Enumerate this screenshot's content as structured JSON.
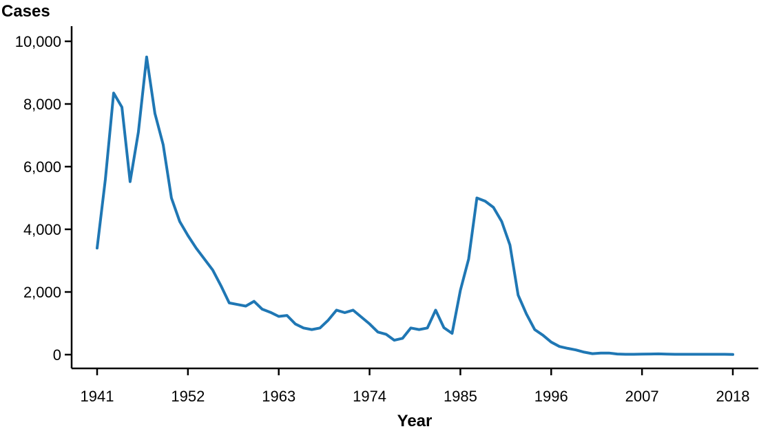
{
  "chart_data": {
    "type": "line",
    "title": "",
    "ylabel": "Cases",
    "xlabel": "Year",
    "xlim": [
      1941,
      2018
    ],
    "ylim": [
      0,
      10000
    ],
    "x_ticks": [
      1941,
      1952,
      1963,
      1974,
      1985,
      1996,
      2007,
      2018
    ],
    "x_tick_labels": [
      "1941",
      "1952",
      "1963",
      "1974",
      "1985",
      "1996",
      "2007",
      "2018"
    ],
    "y_ticks": [
      0,
      2000,
      4000,
      6000,
      8000,
      10000
    ],
    "y_tick_labels": [
      "0",
      "2,000",
      "4,000",
      "6,000",
      "8,000",
      "10,000"
    ],
    "grid": false,
    "series_color": "#1f77b4",
    "x": [
      1941,
      1942,
      1943,
      1944,
      1945,
      1946,
      1947,
      1948,
      1949,
      1950,
      1951,
      1952,
      1953,
      1954,
      1955,
      1956,
      1957,
      1958,
      1959,
      1960,
      1961,
      1962,
      1963,
      1964,
      1965,
      1966,
      1967,
      1968,
      1969,
      1970,
      1971,
      1972,
      1973,
      1974,
      1975,
      1976,
      1977,
      1978,
      1979,
      1980,
      1981,
      1982,
      1983,
      1984,
      1985,
      1986,
      1987,
      1988,
      1989,
      1990,
      1991,
      1992,
      1993,
      1994,
      1995,
      1996,
      1997,
      1998,
      1999,
      2000,
      2001,
      2002,
      2003,
      2004,
      2005,
      2006,
      2007,
      2008,
      2009,
      2010,
      2011,
      2012,
      2013,
      2014,
      2015,
      2016,
      2017,
      2018
    ],
    "series": [
      {
        "values": [
          3400,
          5600,
          8350,
          7900,
          5520,
          7100,
          9500,
          7700,
          6700,
          5000,
          4250,
          3800,
          3400,
          3050,
          2700,
          2200,
          1650,
          1600,
          1550,
          1700,
          1450,
          1350,
          1220,
          1250,
          980,
          850,
          800,
          850,
          1100,
          1420,
          1340,
          1420,
          1200,
          980,
          720,
          650,
          460,
          520,
          850,
          800,
          850,
          1420,
          860,
          680,
          2050,
          3050,
          5000,
          4900,
          4700,
          4250,
          3500,
          1900,
          1300,
          800,
          620,
          400,
          260,
          200,
          150,
          80,
          30,
          50,
          50,
          20,
          10,
          10,
          15,
          20,
          25,
          15,
          10,
          10,
          10,
          10,
          10,
          10,
          10,
          5
        ]
      }
    ]
  }
}
